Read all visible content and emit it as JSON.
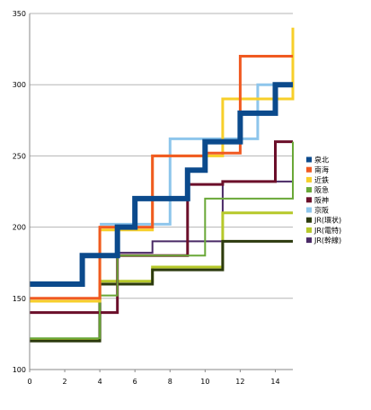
{
  "chart_data": {
    "type": "line",
    "step": true,
    "title": "",
    "xlabel": "",
    "ylabel": "",
    "xlim": [
      0,
      15
    ],
    "ylim": [
      100,
      350
    ],
    "x_ticks": [
      "0",
      "2",
      "4",
      "6",
      "8",
      "10",
      "12",
      "14"
    ],
    "y_ticks": [
      "100",
      "150",
      "200",
      "250",
      "300",
      "350"
    ],
    "grid": "horizontal",
    "legend_position": "right",
    "series": [
      {
        "name": "泉北",
        "color": "#0b4a8c",
        "width": 6,
        "points": [
          [
            0,
            160
          ],
          [
            3,
            160
          ],
          [
            3,
            180
          ],
          [
            5,
            180
          ],
          [
            5,
            200
          ],
          [
            6,
            200
          ],
          [
            6,
            220
          ],
          [
            9,
            220
          ],
          [
            9,
            240
          ],
          [
            10,
            240
          ],
          [
            10,
            260
          ],
          [
            12,
            260
          ],
          [
            12,
            280
          ],
          [
            14,
            280
          ],
          [
            14,
            300
          ],
          [
            15,
            300
          ]
        ]
      },
      {
        "name": "南海",
        "color": "#f05a22",
        "width": 3,
        "points": [
          [
            0,
            150
          ],
          [
            4,
            150
          ],
          [
            4,
            200
          ],
          [
            7,
            200
          ],
          [
            7,
            250
          ],
          [
            10,
            250
          ],
          [
            10,
            252
          ],
          [
            12,
            252
          ],
          [
            12,
            320
          ],
          [
            15,
            320
          ]
        ]
      },
      {
        "name": "近鉄",
        "color": "#f7cf2a",
        "width": 3,
        "points": [
          [
            0,
            148
          ],
          [
            4,
            148
          ],
          [
            4,
            198
          ],
          [
            7,
            198
          ],
          [
            7,
            250
          ],
          [
            11,
            250
          ],
          [
            11,
            290
          ],
          [
            15,
            290
          ],
          [
            15,
            340
          ]
        ]
      },
      {
        "name": "阪急",
        "color": "#6aa838",
        "width": 2,
        "points": [
          [
            0,
            122
          ],
          [
            4,
            122
          ],
          [
            4,
            152
          ],
          [
            5,
            152
          ],
          [
            5,
            180
          ],
          [
            10,
            180
          ],
          [
            10,
            220
          ],
          [
            15,
            220
          ],
          [
            15,
            260
          ]
        ]
      },
      {
        "name": "阪神",
        "color": "#6b0f2a",
        "width": 3,
        "points": [
          [
            0,
            140
          ],
          [
            5,
            140
          ],
          [
            5,
            180
          ],
          [
            9,
            180
          ],
          [
            9,
            230
          ],
          [
            11,
            230
          ],
          [
            11,
            232
          ],
          [
            14,
            232
          ],
          [
            14,
            260
          ],
          [
            15,
            260
          ]
        ]
      },
      {
        "name": "京阪",
        "color": "#8ec6ec",
        "width": 3,
        "points": [
          [
            4,
            202
          ],
          [
            8,
            202
          ],
          [
            8,
            262
          ],
          [
            13,
            262
          ],
          [
            13,
            300
          ],
          [
            15,
            300
          ]
        ]
      },
      {
        "name": "JR(環状)",
        "color": "#2c3a0e",
        "width": 3,
        "points": [
          [
            0,
            120
          ],
          [
            4,
            120
          ],
          [
            4,
            160
          ],
          [
            7,
            160
          ],
          [
            7,
            170
          ],
          [
            11,
            170
          ],
          [
            11,
            190
          ],
          [
            15,
            190
          ]
        ]
      },
      {
        "name": "JR(電特)",
        "color": "#b6c82a",
        "width": 3,
        "points": [
          [
            0,
            121
          ],
          [
            4,
            121
          ],
          [
            4,
            162
          ],
          [
            7,
            162
          ],
          [
            7,
            172
          ],
          [
            11,
            172
          ],
          [
            11,
            210
          ],
          [
            15,
            210
          ]
        ]
      },
      {
        "name": "JR(幹線)",
        "color": "#4a2a66",
        "width": 2,
        "points": [
          [
            0,
            150
          ],
          [
            4,
            150
          ],
          [
            4,
            200
          ],
          [
            5,
            200
          ],
          [
            5,
            182
          ],
          [
            7,
            182
          ],
          [
            7,
            190
          ],
          [
            11,
            190
          ],
          [
            11,
            232
          ],
          [
            15,
            232
          ]
        ]
      }
    ]
  }
}
